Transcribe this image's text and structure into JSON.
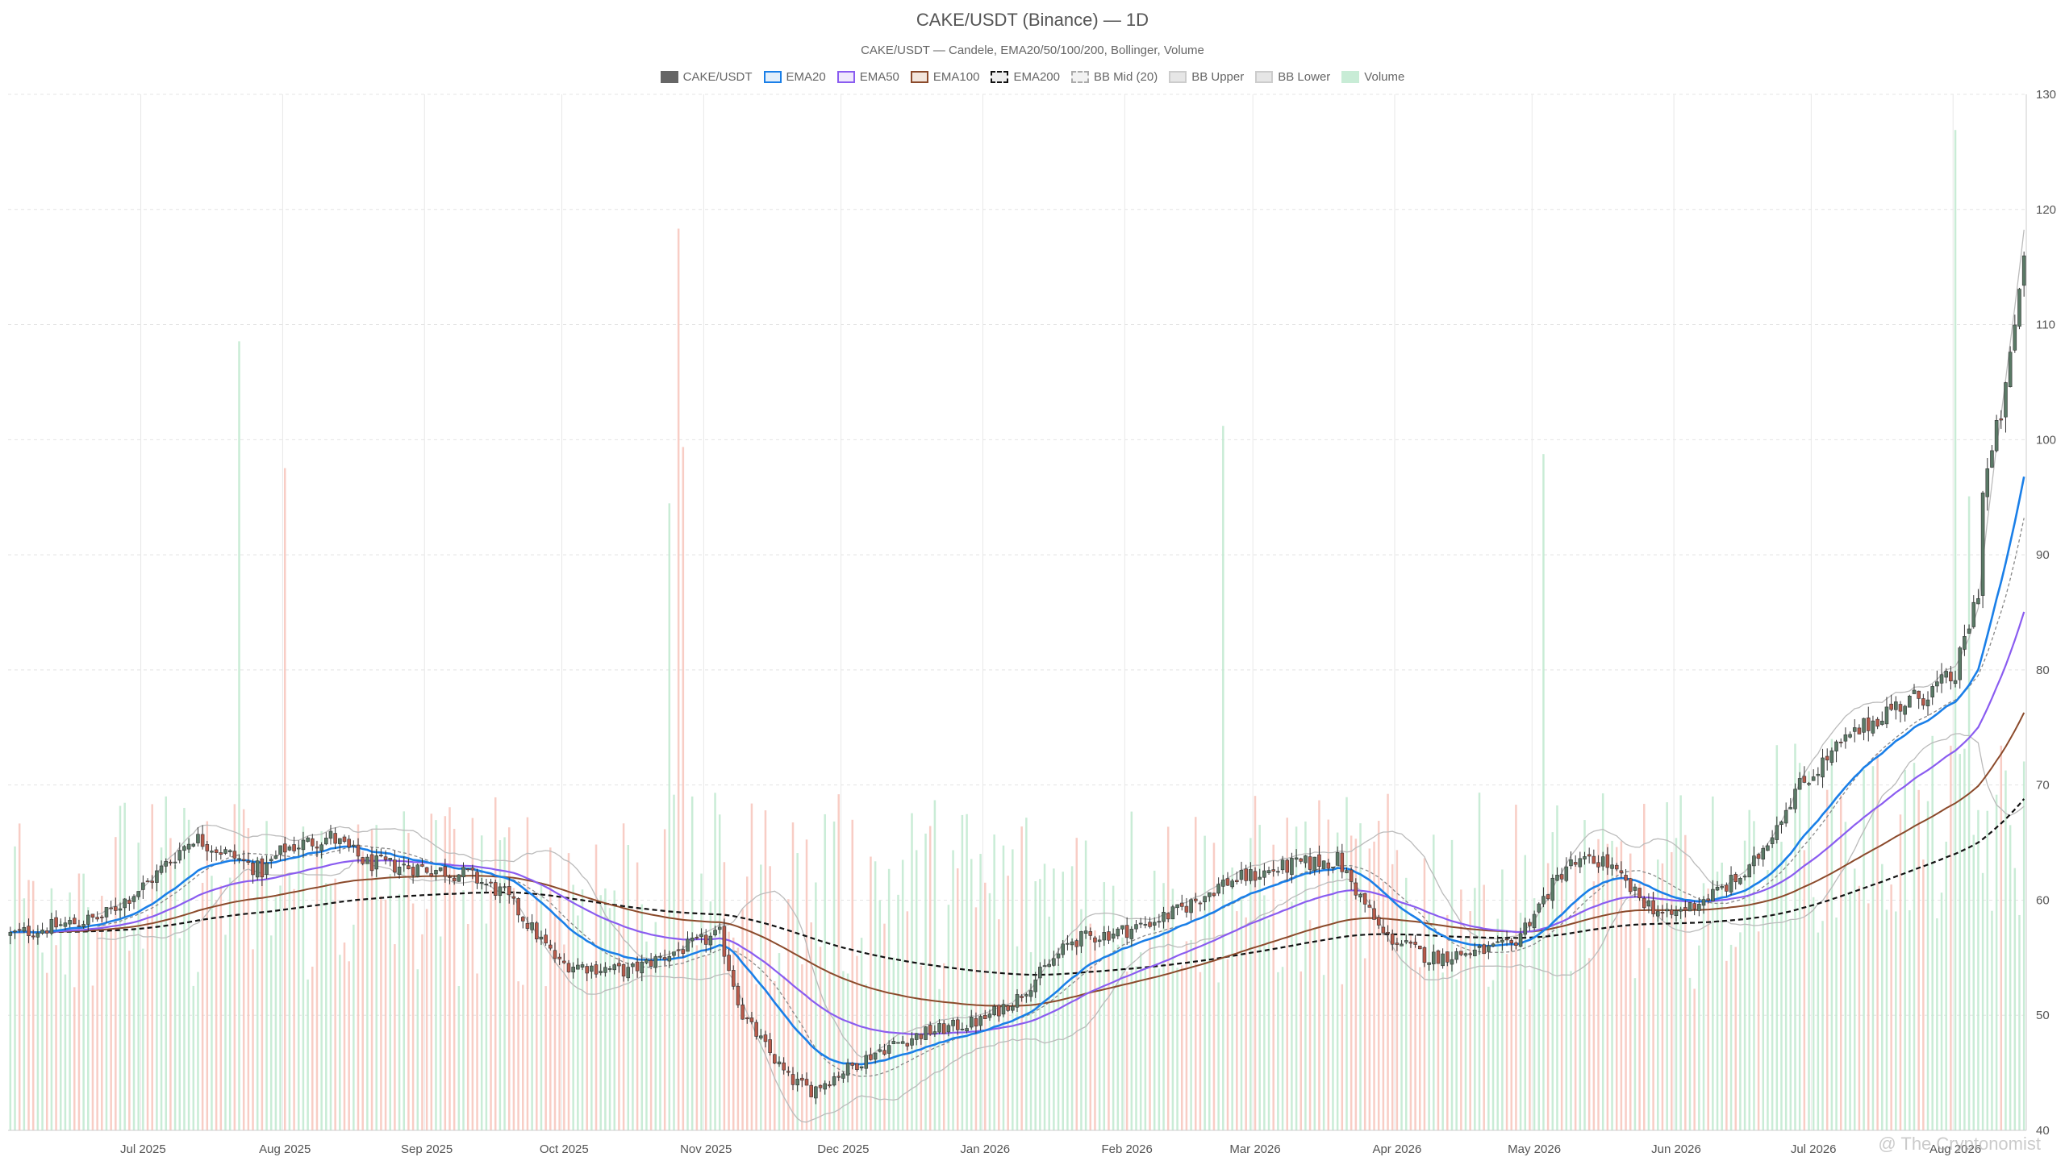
{
  "page": {
    "title": "CAKE/USDT (Binance) — 1D",
    "subtitle": "CAKE/USDT — Candele, EMA20/50/100/200, Bollinger, Volume",
    "watermark": "@ The Cryptonomist"
  },
  "legend": [
    {
      "label": "CAKE/USDT",
      "color": "#666666",
      "fill": "#666666",
      "style": "solid"
    },
    {
      "label": "EMA20",
      "color": "#1a7fe8",
      "fill": "#e3effb",
      "style": "solid"
    },
    {
      "label": "EMA50",
      "color": "#8a5cf0",
      "fill": "#efe8fc",
      "style": "solid"
    },
    {
      "label": "EMA100",
      "color": "#8b4a2b",
      "fill": "#f3e6dd",
      "style": "solid"
    },
    {
      "label": "EMA200",
      "color": "#111111",
      "fill": "#eeeeee",
      "style": "dashed"
    },
    {
      "label": "BB Mid (20)",
      "color": "#aaaaaa",
      "fill": "#f2f2f2",
      "style": "dashed"
    },
    {
      "label": "BB Upper",
      "color": "#cccccc",
      "fill": "#e6e6e6",
      "style": "solid"
    },
    {
      "label": "BB Lower",
      "color": "#cccccc",
      "fill": "#e6e6e6",
      "style": "solid"
    },
    {
      "label": "Volume",
      "color": "#c8ecd6",
      "fill": "#c8ecd6",
      "style": "solid"
    }
  ],
  "chart_data": {
    "type": "candlestick",
    "pair": "CAKE/USDT",
    "exchange": "Binance",
    "timeframe": "1D",
    "y_axis": {
      "min": 40,
      "max": 130,
      "ticks": [
        40,
        50,
        60,
        70,
        80,
        90,
        100,
        110,
        120,
        130
      ],
      "side": "right"
    },
    "x_axis": {
      "labels": [
        "Jul 2025",
        "Aug 2025",
        "Sep 2025",
        "Oct 2025",
        "Nov 2025",
        "Dec 2025",
        "Jan 2026",
        "Feb 2026",
        "Mar 2026",
        "Apr 2026",
        "May 2026",
        "Jun 2026",
        "Jul 2026",
        "Aug 2026"
      ],
      "start_date": "2025-06-02",
      "days": 440
    },
    "grid": true,
    "colors": {
      "up": "#5a7a66",
      "down": "#b85a4a",
      "vol_up": "#bfe9cf",
      "vol_down": "#f7c4bb"
    },
    "close_anchors": [
      [
        0,
        57.0
      ],
      [
        20,
        58.5
      ],
      [
        30,
        61.5
      ],
      [
        40,
        65.5
      ],
      [
        55,
        62.5
      ],
      [
        60,
        64.5
      ],
      [
        70,
        65.5
      ],
      [
        78,
        63.2
      ],
      [
        90,
        62.8
      ],
      [
        100,
        62.2
      ],
      [
        108,
        60.5
      ],
      [
        120,
        54.5
      ],
      [
        135,
        53.8
      ],
      [
        145,
        55.5
      ],
      [
        155,
        57.0
      ],
      [
        160,
        50.0
      ],
      [
        170,
        44.5
      ],
      [
        175,
        43.5
      ],
      [
        190,
        47.0
      ],
      [
        200,
        48.5
      ],
      [
        212,
        49.5
      ],
      [
        220,
        51.5
      ],
      [
        232,
        56.5
      ],
      [
        245,
        57.5
      ],
      [
        255,
        59.0
      ],
      [
        265,
        61.5
      ],
      [
        280,
        63.0
      ],
      [
        290,
        63.5
      ],
      [
        300,
        57.0
      ],
      [
        310,
        55.0
      ],
      [
        320,
        55.5
      ],
      [
        328,
        56.0
      ],
      [
        340,
        63.0
      ],
      [
        348,
        63.5
      ],
      [
        355,
        60.5
      ],
      [
        362,
        58.5
      ],
      [
        372,
        60.5
      ],
      [
        380,
        62.5
      ],
      [
        390,
        69.5
      ],
      [
        400,
        73.5
      ],
      [
        410,
        76.5
      ],
      [
        418,
        77.8
      ],
      [
        425,
        79.5
      ],
      [
        430,
        87.0
      ],
      [
        431,
        95.5
      ],
      [
        436,
        104.0
      ],
      [
        440,
        116.0
      ]
    ],
    "volume_unit": "relative",
    "volume_spikes": [
      [
        50,
        1.12
      ],
      [
        60,
        0.94
      ],
      [
        144,
        0.89
      ],
      [
        146,
        1.28
      ],
      [
        147,
        0.97
      ],
      [
        265,
        1.0
      ],
      [
        335,
        0.96
      ],
      [
        425,
        1.42
      ],
      [
        428,
        0.9
      ]
    ]
  }
}
